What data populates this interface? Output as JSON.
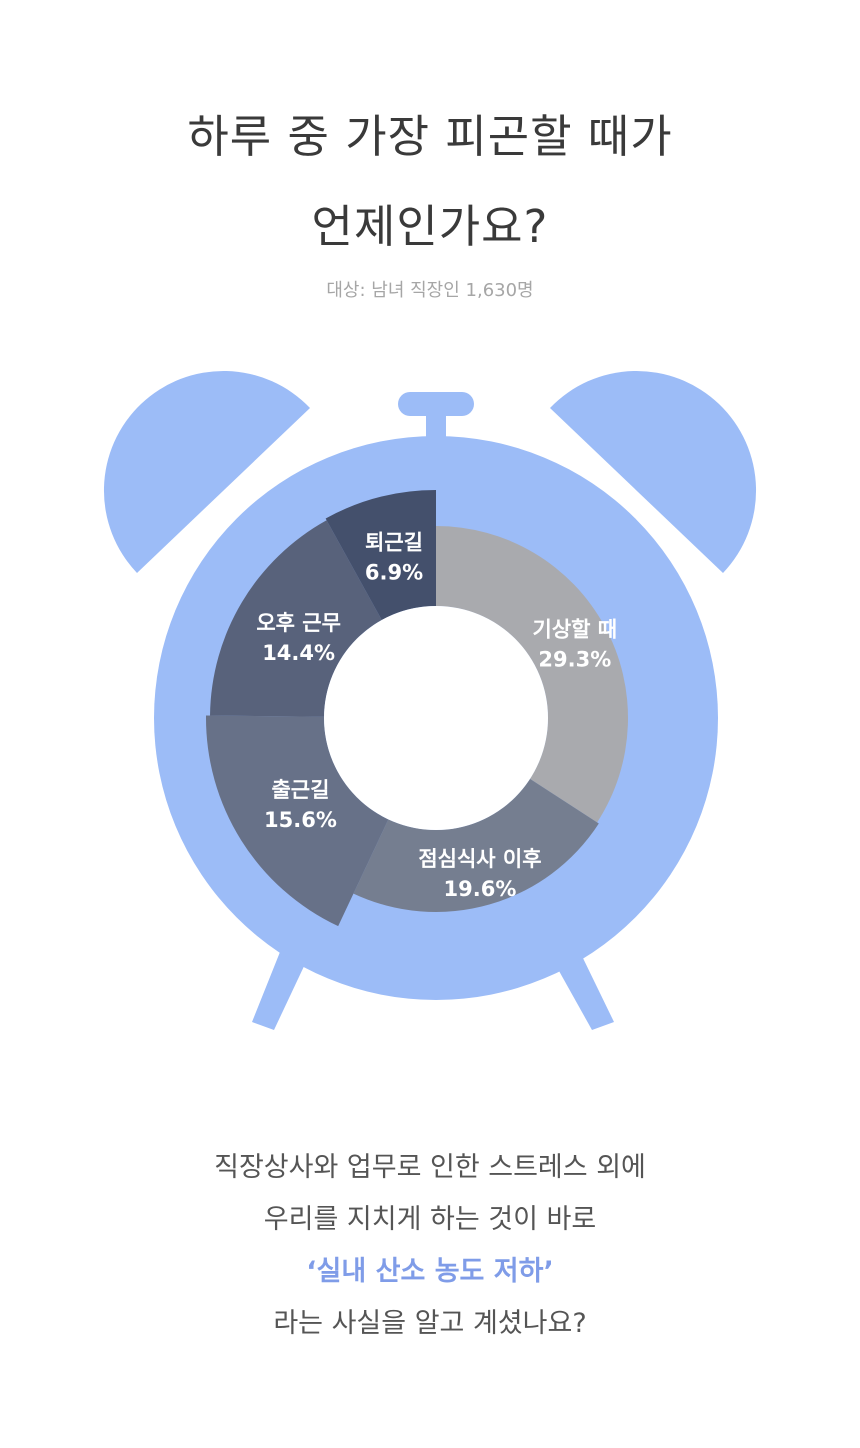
{
  "header": {
    "title_line1": "하루 중 가장 피곤할 때가",
    "title_line2": "언제인가요?",
    "subtitle": "대상: 남녀 직장인 1,630명"
  },
  "chart_data": {
    "type": "pie",
    "categories": [
      "기상할 때",
      "점심식사 이후",
      "출근길",
      "오후 근무",
      "퇴근길"
    ],
    "values": [
      29.3,
      19.6,
      15.6,
      14.4,
      6.9
    ],
    "labels": [
      "29.3%",
      "19.6%",
      "15.6%",
      "14.4%",
      "6.9%"
    ],
    "colors": [
      "#a9aaae",
      "#727887",
      "#636a7e",
      "#525a70",
      "#3d4760"
    ],
    "style": "donut"
  },
  "colors": {
    "clock": "#9cbcf7",
    "highlight": "#7f9ce8"
  },
  "footer": {
    "line1": "직장상사와 업무로 인한 스트레스 외에",
    "line2": "우리를 지치게 하는 것이 바로",
    "highlight": "‘실내 산소 농도 저하’",
    "line4": "라는 사실을 알고 계셨나요?"
  }
}
